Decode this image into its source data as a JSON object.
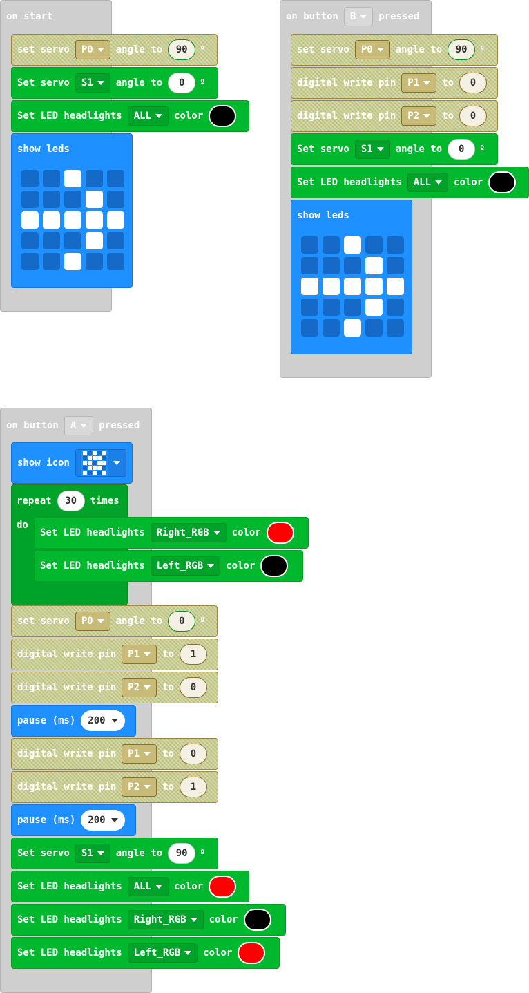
{
  "on_start": {
    "hat_label": "on start",
    "servo_p0": {
      "prefix": "set servo",
      "pin": "P0",
      "middle": "angle to",
      "value": "90",
      "suffix": "º"
    },
    "servo_s1": {
      "prefix": "Set servo",
      "pin": "S1",
      "middle": "angle to",
      "value": "0",
      "suffix": "º"
    },
    "led": {
      "prefix": "Set LED headlights",
      "target": "ALL",
      "middle": "color",
      "color": "#000000"
    },
    "show_leds": {
      "label": "show leds",
      "pattern": [
        [
          0,
          0,
          1,
          0,
          0
        ],
        [
          0,
          0,
          0,
          1,
          0
        ],
        [
          1,
          1,
          1,
          1,
          1
        ],
        [
          0,
          0,
          0,
          1,
          0
        ],
        [
          0,
          0,
          1,
          0,
          0
        ]
      ]
    }
  },
  "on_button_b": {
    "hat_prefix": "on button",
    "button": "B",
    "hat_suffix": "pressed",
    "servo_p0": {
      "prefix": "set servo",
      "pin": "P0",
      "middle": "angle to",
      "value": "90",
      "suffix": "º"
    },
    "dw_p1": {
      "prefix": "digital write pin",
      "pin": "P1",
      "middle": "to",
      "value": "0"
    },
    "dw_p2": {
      "prefix": "digital write pin",
      "pin": "P2",
      "middle": "to",
      "value": "0"
    },
    "servo_s1": {
      "prefix": "Set servo",
      "pin": "S1",
      "middle": "angle to",
      "value": "0",
      "suffix": "º"
    },
    "led": {
      "prefix": "Set LED headlights",
      "target": "ALL",
      "middle": "color",
      "color": "#000000"
    },
    "show_leds": {
      "label": "show leds",
      "pattern": [
        [
          0,
          0,
          1,
          0,
          0
        ],
        [
          0,
          0,
          0,
          1,
          0
        ],
        [
          1,
          1,
          1,
          1,
          1
        ],
        [
          0,
          0,
          0,
          1,
          0
        ],
        [
          0,
          0,
          1,
          0,
          0
        ]
      ]
    }
  },
  "on_button_a": {
    "hat_prefix": "on button",
    "button": "A",
    "hat_suffix": "pressed",
    "show_icon": {
      "label": "show icon",
      "icon_name": "pitchfork-icon",
      "pattern": [
        [
          1,
          0,
          1,
          0,
          1
        ],
        [
          0,
          1,
          1,
          1,
          0
        ],
        [
          1,
          1,
          0,
          1,
          1
        ],
        [
          0,
          1,
          1,
          1,
          0
        ],
        [
          1,
          0,
          1,
          0,
          1
        ]
      ]
    },
    "repeat": {
      "prefix": "repeat",
      "count": "30",
      "suffix": "times",
      "do_label": "do"
    },
    "rep_led_right": {
      "prefix": "Set LED headlights",
      "target": "Right_RGB",
      "middle": "color",
      "color": "#ff0000"
    },
    "rep_led_left": {
      "prefix": "Set LED headlights",
      "target": "Left_RGB",
      "middle": "color",
      "color": "#000000"
    },
    "servo_p0": {
      "prefix": "set servo",
      "pin": "P0",
      "middle": "angle to",
      "value": "0",
      "suffix": "º"
    },
    "dw1": {
      "prefix": "digital write pin",
      "pin": "P1",
      "middle": "to",
      "value": "1"
    },
    "dw2": {
      "prefix": "digital write pin",
      "pin": "P2",
      "middle": "to",
      "value": "0"
    },
    "pause1": {
      "prefix": "pause (ms)",
      "value": "200"
    },
    "dw3": {
      "prefix": "digital write pin",
      "pin": "P1",
      "middle": "to",
      "value": "0"
    },
    "dw4": {
      "prefix": "digital write pin",
      "pin": "P2",
      "middle": "to",
      "value": "1"
    },
    "pause2": {
      "prefix": "pause (ms)",
      "value": "200"
    },
    "servo_s1": {
      "prefix": "Set servo",
      "pin": "S1",
      "middle": "angle to",
      "value": "90",
      "suffix": "º"
    },
    "led_all": {
      "prefix": "Set LED headlights",
      "target": "ALL",
      "middle": "color",
      "color": "#ff0000"
    },
    "led_right": {
      "prefix": "Set LED headlights",
      "target": "Right_RGB",
      "middle": "color",
      "color": "#000000"
    },
    "led_left": {
      "prefix": "Set LED headlights",
      "target": "Left_RGB",
      "middle": "color",
      "color": "#ff0000"
    }
  }
}
